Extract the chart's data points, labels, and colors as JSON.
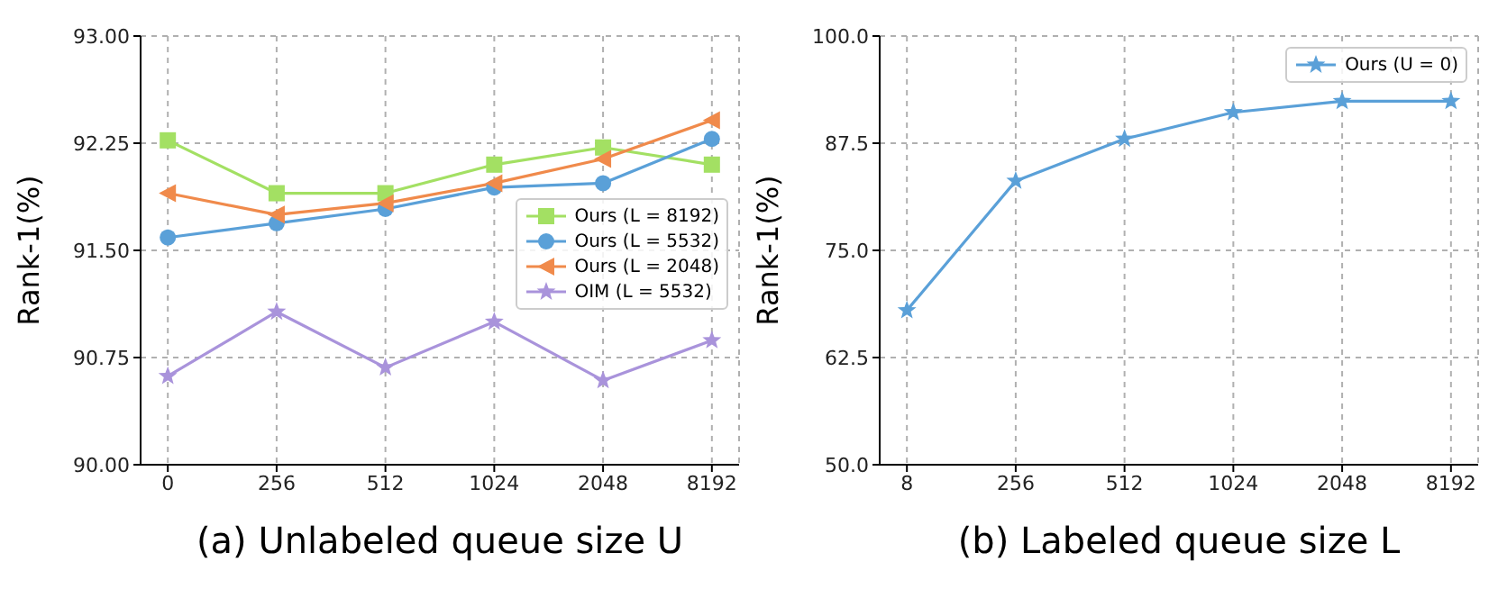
{
  "chart_data": [
    {
      "type": "line",
      "title": "(a) Unlabeled queue size U",
      "ylabel": "Rank-1(%)",
      "categories": [
        "0",
        "256",
        "512",
        "1024",
        "2048",
        "8192"
      ],
      "ylim": [
        90,
        93
      ],
      "yticks": [
        {
          "value": 90,
          "label": "90.00"
        },
        {
          "value": 90.75,
          "label": "90.75"
        },
        {
          "value": 91.5,
          "label": "91.50"
        },
        {
          "value": 92.25,
          "label": "92.25"
        },
        {
          "value": 93,
          "label": "93.00"
        }
      ],
      "grid": true,
      "legend": "right",
      "line_style": "solid",
      "series": [
        {
          "name": "Ours (L = 8192)",
          "color": "#a3e063",
          "marker": "square",
          "values": [
            92.27,
            91.9,
            91.9,
            92.1,
            92.22,
            92.1
          ]
        },
        {
          "name": "Ours (L = 5532)",
          "color": "#5aa0d8",
          "marker": "circle",
          "values": [
            91.59,
            91.69,
            91.79,
            91.94,
            91.97,
            92.28
          ]
        },
        {
          "name": "Ours (L = 2048)",
          "color": "#f08a4b",
          "marker": "triangle",
          "values": [
            91.9,
            91.75,
            91.83,
            91.97,
            92.14,
            92.41
          ]
        },
        {
          "name": "OIM (L = 5532)",
          "color": "#a993db",
          "marker": "star",
          "values": [
            90.62,
            91.07,
            90.68,
            91.0,
            90.59,
            90.87
          ]
        }
      ]
    },
    {
      "type": "line",
      "title": "(b) Labeled queue size L",
      "ylabel": "Rank-1(%)",
      "categories": [
        "8",
        "256",
        "512",
        "1024",
        "2048",
        "8192"
      ],
      "ylim": [
        50,
        100
      ],
      "yticks": [
        {
          "value": 50,
          "label": "50.0"
        },
        {
          "value": 62.5,
          "label": "62.5"
        },
        {
          "value": 75,
          "label": "75.0"
        },
        {
          "value": 87.5,
          "label": "87.5"
        },
        {
          "value": 100,
          "label": "100.0"
        }
      ],
      "grid": true,
      "legend": "top right",
      "line_style": "solid",
      "series": [
        {
          "name": "Ours (U = 0)",
          "color": "#5aa0d8",
          "marker": "star",
          "values": [
            68.0,
            83.1,
            88.0,
            91.1,
            92.4,
            92.4
          ]
        }
      ]
    }
  ]
}
